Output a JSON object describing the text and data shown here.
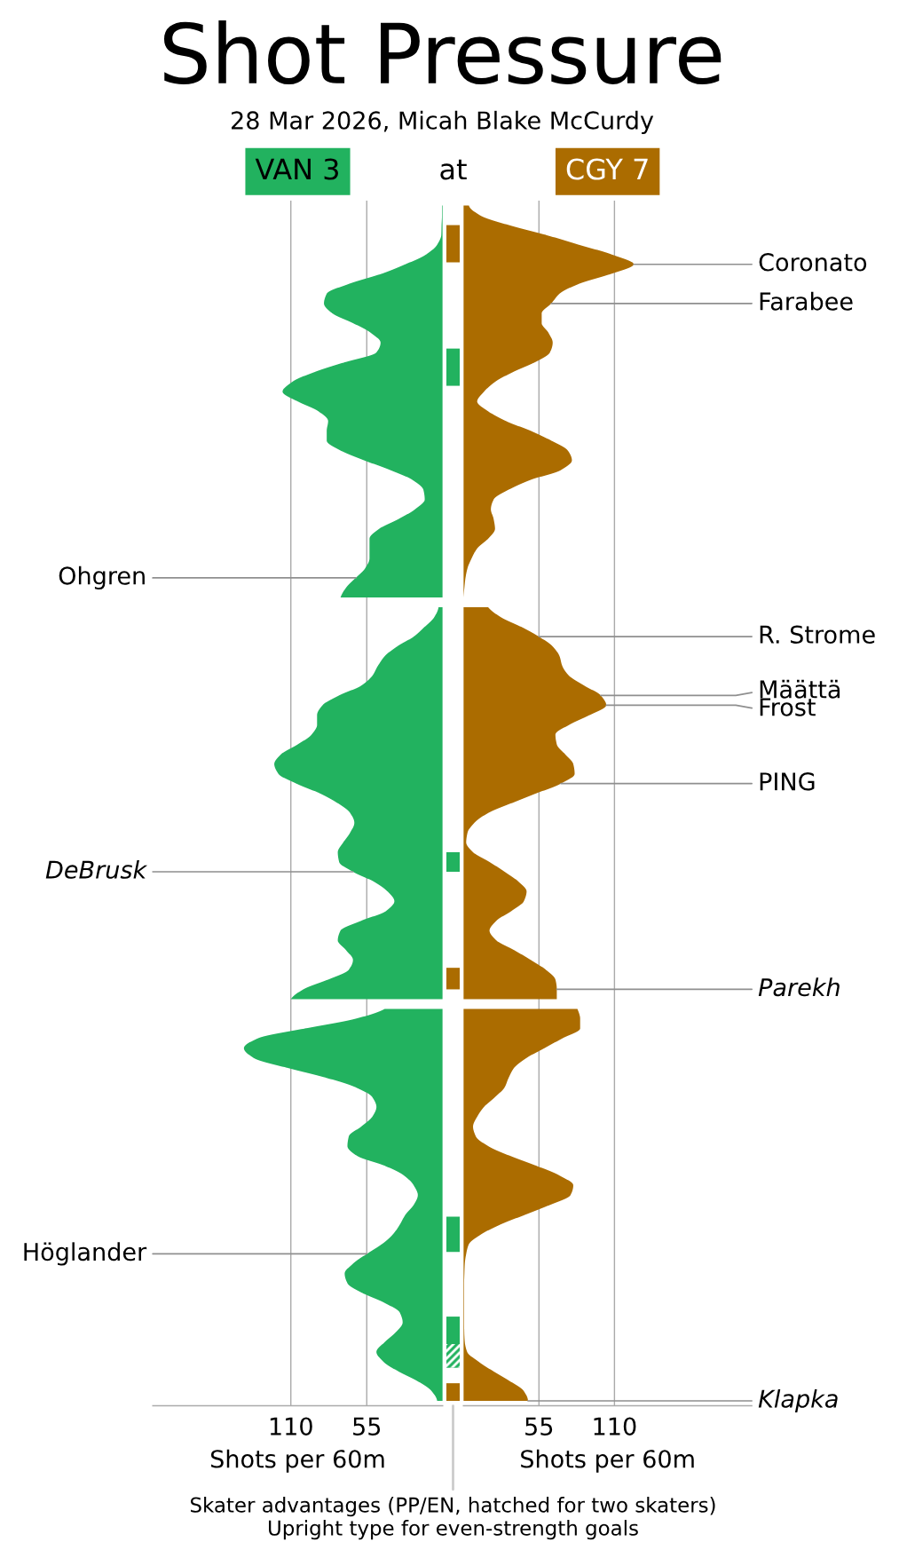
{
  "chart_data": [
    {
      "type": "area",
      "orientation": "horizontal",
      "title": "Shot Pressure",
      "subtitle": "28 Mar 2026, Micah Blake McCurdy",
      "annotations": [
        "at"
      ],
      "legend": "top",
      "xlim": [
        210,
        0
      ],
      "xticks": [
        55,
        110
      ],
      "xlabel": "Shots per 60m",
      "grid": "x",
      "tick_labels": "x",
      "categories": [
        null,
        null,
        null,
        null,
        null,
        null,
        null,
        null,
        null,
        null,
        null,
        null,
        null,
        null,
        null,
        null,
        null,
        null,
        null,
        null,
        null,
        null,
        null,
        null,
        null,
        null,
        null,
        null,
        null,
        null,
        null,
        null,
        null,
        null,
        null,
        null,
        null,
        null,
        null,
        null,
        null,
        null,
        null,
        null,
        null,
        null,
        null,
        null,
        null,
        null,
        null,
        null,
        null,
        null,
        null,
        null,
        null,
        null,
        null,
        null,
        null,
        null,
        null,
        null,
        null,
        null,
        null,
        null,
        null,
        null,
        null,
        null,
        null,
        null,
        null,
        null,
        null,
        null,
        null,
        null,
        null,
        null,
        null,
        null,
        null,
        null,
        null,
        null,
        null,
        null,
        null,
        null,
        null,
        null,
        null,
        null,
        null,
        null,
        null,
        null,
        null,
        null,
        null,
        null,
        null,
        null,
        null,
        null,
        null,
        null,
        null,
        null,
        null,
        null,
        null,
        null,
        null,
        null,
        null,
        null,
        null,
        null,
        null
      ],
      "series": [
        {
          "name": "VAN 3",
          "color": "#22b25f",
          "values": [
            0.5,
            0.5,
            0.8,
            1,
            4,
            12,
            27,
            45,
            68,
            84,
            86,
            80,
            65,
            52,
            45,
            48,
            71,
            93,
            109,
            116,
            105,
            90,
            83,
            84,
            84,
            74,
            57,
            38,
            22,
            14,
            13,
            20,
            32,
            46,
            53,
            53,
            53,
            56,
            63,
            70,
            74,
            null,
            null,
            null,
            null,
            null,
            null,
            null,
            null,
            null,
            null,
            null,
            null,
            null,
            null,
            null,
            null,
            null,
            null,
            null,
            null,
            null,
            null,
            null,
            null,
            null,
            null,
            null,
            null,
            null,
            null,
            null,
            null,
            null,
            null,
            null,
            null,
            null,
            null,
            null,
            null,
            null,
            null,
            null,
            null,
            null,
            null,
            null,
            null,
            null,
            null,
            null,
            null,
            null,
            null,
            null,
            null,
            null,
            null,
            null,
            null,
            null,
            null,
            null,
            null,
            null,
            null,
            null,
            null,
            null,
            null,
            null,
            null,
            null,
            null,
            null,
            null,
            null,
            null,
            null,
            null,
            null,
            null
          ],
          "value_labels": [
            null,
            null,
            null,
            null,
            null,
            null,
            null,
            null,
            null,
            null,
            null,
            null,
            null,
            null,
            null,
            null,
            null,
            null,
            null,
            null,
            null,
            null,
            null,
            null,
            null,
            null,
            null,
            null,
            null,
            null,
            null,
            null,
            null,
            null,
            null,
            null,
            null,
            null,
            "Ohgren",
            null,
            null,
            null,
            null,
            null,
            null,
            null,
            null,
            null,
            null,
            null,
            null,
            null,
            null,
            null,
            null,
            null,
            null,
            null,
            null,
            null,
            null,
            null,
            null,
            null,
            null,
            null,
            null,
            null,
            null,
            null,
            null,
            null,
            null,
            null,
            null,
            null,
            null,
            null,
            null,
            null,
            null,
            null,
            null,
            null,
            null,
            null,
            null,
            null,
            null,
            null,
            null,
            null,
            null,
            null,
            null,
            null,
            null,
            null,
            null,
            null,
            null,
            null,
            null,
            null,
            null,
            null,
            null,
            null,
            null,
            null,
            null,
            null,
            null,
            null,
            null,
            null,
            null,
            null,
            null,
            null,
            null,
            null,
            null
          ]
        },
        {
          "color": "#22b25f",
          "values": [
            null,
            null,
            null,
            null,
            null,
            null,
            null,
            null,
            null,
            null,
            null,
            null,
            null,
            null,
            null,
            null,
            null,
            null,
            null,
            null,
            null,
            null,
            null,
            null,
            null,
            null,
            null,
            null,
            null,
            null,
            null,
            null,
            null,
            null,
            null,
            null,
            null,
            null,
            null,
            null,
            null,
            3,
            6,
            13,
            21,
            33,
            42,
            47,
            51,
            59,
            75,
            87,
            91,
            91,
            95,
            105,
            117,
            122,
            119,
            106,
            89,
            76,
            67,
            64,
            67,
            72,
            76,
            75,
            65,
            50,
            40,
            35,
            41,
            59,
            74,
            76,
            70,
            65,
            68,
            83,
            101,
            110,
            null,
            null,
            null,
            null,
            null,
            null,
            null,
            null,
            null,
            null,
            null,
            null,
            null,
            null,
            null,
            null,
            null,
            null,
            null,
            null,
            null,
            null,
            null,
            null,
            null,
            null,
            null,
            null,
            null,
            null,
            null,
            null,
            null,
            null,
            null,
            null,
            null,
            null,
            null,
            null,
            null
          ],
          "value_labels": [
            null,
            null,
            null,
            null,
            null,
            null,
            null,
            null,
            null,
            null,
            null,
            null,
            null,
            null,
            null,
            null,
            null,
            null,
            null,
            null,
            null,
            null,
            null,
            null,
            null,
            null,
            null,
            null,
            null,
            null,
            null,
            null,
            null,
            null,
            null,
            null,
            null,
            null,
            null,
            null,
            null,
            null,
            null,
            null,
            null,
            null,
            null,
            null,
            null,
            null,
            null,
            null,
            null,
            null,
            null,
            null,
            null,
            null,
            null,
            null,
            null,
            null,
            null,
            null,
            null,
            null,
            null,
            null,
            "DeBrusk",
            null,
            null,
            null,
            null,
            null,
            null,
            null,
            null,
            null,
            null,
            null,
            null,
            null,
            null,
            null,
            null,
            null,
            null,
            null,
            null,
            null,
            null,
            null,
            null,
            null,
            null,
            null,
            null,
            null,
            null,
            null,
            null,
            null,
            null,
            null,
            null,
            null,
            null,
            null,
            null,
            null,
            null,
            null,
            null,
            null,
            null,
            null,
            null,
            null,
            null,
            null,
            null,
            null,
            null
          ]
        },
        {
          "color": "#22b25f",
          "values": [
            null,
            null,
            null,
            null,
            null,
            null,
            null,
            null,
            null,
            null,
            null,
            null,
            null,
            null,
            null,
            null,
            null,
            null,
            null,
            null,
            null,
            null,
            null,
            null,
            null,
            null,
            null,
            null,
            null,
            null,
            null,
            null,
            null,
            null,
            null,
            null,
            null,
            null,
            null,
            null,
            null,
            null,
            null,
            null,
            null,
            null,
            null,
            null,
            null,
            null,
            null,
            null,
            null,
            null,
            null,
            null,
            null,
            null,
            null,
            null,
            null,
            null,
            null,
            null,
            null,
            null,
            null,
            null,
            null,
            null,
            null,
            null,
            null,
            null,
            null,
            null,
            null,
            null,
            null,
            null,
            null,
            null,
            42,
            63,
            100,
            134,
            144,
            137,
            113,
            85,
            63,
            51,
            48,
            51,
            59,
            68,
            69,
            62,
            42,
            28,
            21,
            18,
            21,
            27,
            31,
            36,
            44,
            55,
            65,
            71,
            69,
            58,
            42,
            31,
            29,
            34,
            42,
            48,
            43,
            32,
            18,
            8,
            4
          ],
          "value_labels": [
            null,
            null,
            null,
            null,
            null,
            null,
            null,
            null,
            null,
            null,
            null,
            null,
            null,
            null,
            null,
            null,
            null,
            null,
            null,
            null,
            null,
            null,
            null,
            null,
            null,
            null,
            null,
            null,
            null,
            null,
            null,
            null,
            null,
            null,
            null,
            null,
            null,
            null,
            null,
            null,
            null,
            null,
            null,
            null,
            null,
            null,
            null,
            null,
            null,
            null,
            null,
            null,
            null,
            null,
            null,
            null,
            null,
            null,
            null,
            null,
            null,
            null,
            null,
            null,
            null,
            null,
            null,
            null,
            null,
            null,
            null,
            null,
            null,
            null,
            null,
            null,
            null,
            null,
            null,
            null,
            null,
            null,
            null,
            null,
            null,
            null,
            null,
            null,
            null,
            null,
            null,
            null,
            null,
            null,
            null,
            null,
            null,
            null,
            null,
            null,
            null,
            null,
            null,
            null,
            null,
            null,
            null,
            "Höglander",
            null,
            null,
            null,
            null,
            null,
            null,
            null,
            null,
            null,
            null,
            null,
            null,
            null,
            null,
            null
          ]
        }
      ]
    },
    {
      "type": "area",
      "orientation": "horizontal",
      "legend": "top",
      "annotations": [
        "Skater advantages (PP/EN, hatched for two skaters)",
        "Upright type for even-strength goals"
      ],
      "xlim": [
        0,
        210
      ],
      "xticks": [
        55,
        110
      ],
      "xlabel": "Shots per 60m",
      "grid": "x",
      "tick_labels": "x",
      "categories": [
        null,
        null,
        null,
        null,
        null,
        null,
        null,
        null,
        null,
        null,
        null,
        null,
        null,
        null,
        null,
        null,
        null,
        null,
        null,
        null,
        null,
        null,
        null,
        null,
        null,
        null,
        null,
        null,
        null,
        null,
        null,
        null,
        null,
        null,
        null,
        null,
        null,
        null,
        null,
        null,
        null,
        null,
        null,
        null,
        null,
        null,
        null,
        null,
        null,
        null,
        null,
        null,
        null,
        null,
        null,
        null,
        null,
        null,
        null,
        null,
        null,
        null,
        null,
        null,
        null,
        null,
        null,
        null,
        null,
        null,
        null,
        null,
        null,
        null,
        null,
        null,
        null,
        null,
        null,
        null,
        null,
        null,
        null,
        null,
        null,
        null,
        null,
        null,
        null,
        null,
        null,
        null,
        null,
        null,
        null,
        null,
        null,
        null,
        null,
        null,
        null,
        null,
        null,
        null,
        null,
        null,
        null,
        null,
        null,
        null,
        null,
        null,
        null,
        null,
        null,
        null,
        null,
        null,
        null,
        null,
        null,
        null,
        null
      ],
      "series": [
        {
          "name": "CGY 7",
          "color": "#ab6c00",
          "values": [
            4,
            12,
            33,
            60,
            84,
            108,
            124,
            107,
            84,
            70,
            64,
            57,
            57,
            62,
            65,
            63,
            52,
            36,
            23,
            15,
            10,
            18,
            31,
            49,
            64,
            76,
            79,
            71,
            49,
            33,
            22,
            20,
            22,
            23,
            18,
            10,
            6,
            3,
            1.5,
            0.7,
            0,
            null,
            null,
            null,
            null,
            null,
            null,
            null,
            null,
            null,
            null,
            null,
            null,
            null,
            null,
            null,
            null,
            null,
            null,
            null,
            null,
            null,
            null,
            null,
            null,
            null,
            null,
            null,
            null,
            null,
            null,
            null,
            null,
            null,
            null,
            null,
            null,
            null,
            null,
            null,
            null,
            null,
            null,
            null,
            null,
            null,
            null,
            null,
            null,
            null,
            null,
            null,
            null,
            null,
            null,
            null,
            null,
            null,
            null,
            null,
            null,
            null,
            null,
            null,
            null,
            null,
            null,
            null,
            null,
            null,
            null,
            null,
            null,
            null,
            null,
            null,
            null,
            null,
            null,
            null,
            null,
            null,
            null
          ],
          "value_labels": [
            null,
            null,
            null,
            null,
            null,
            null,
            "Coronato",
            null,
            null,
            null,
            "Farabee",
            null,
            null,
            null,
            null,
            null,
            null,
            null,
            null,
            null,
            null,
            null,
            null,
            null,
            null,
            null,
            null,
            null,
            null,
            null,
            null,
            null,
            null,
            null,
            null,
            null,
            null,
            null,
            null,
            null,
            null,
            null,
            null,
            null,
            null,
            null,
            null,
            null,
            null,
            null,
            null,
            null,
            null,
            null,
            null,
            null,
            null,
            null,
            null,
            null,
            null,
            null,
            null,
            null,
            null,
            null,
            null,
            null,
            null,
            null,
            null,
            null,
            null,
            null,
            null,
            null,
            null,
            null,
            null,
            null,
            null,
            null,
            null,
            null,
            null,
            null,
            null,
            null,
            null,
            null,
            null,
            null,
            null,
            null,
            null,
            null,
            null,
            null,
            null,
            null,
            null,
            null,
            null,
            null,
            null,
            null,
            null,
            null,
            null,
            null,
            null,
            null,
            null,
            null,
            null,
            null,
            null,
            null,
            null,
            null,
            null,
            null,
            null
          ]
        },
        {
          "color": "#ab6c00",
          "values": [
            null,
            null,
            null,
            null,
            null,
            null,
            null,
            null,
            null,
            null,
            null,
            null,
            null,
            null,
            null,
            null,
            null,
            null,
            null,
            null,
            null,
            null,
            null,
            null,
            null,
            null,
            null,
            null,
            null,
            null,
            null,
            null,
            null,
            null,
            null,
            null,
            null,
            null,
            null,
            null,
            null,
            18,
            27,
            42,
            55,
            65,
            70,
            72,
            77,
            88,
            100,
            104,
            92,
            77,
            67,
            68,
            74,
            80,
            81,
            71,
            53,
            35,
            18,
            8,
            3,
            2,
            7,
            19,
            30,
            40,
            46,
            44,
            35,
            24,
            19,
            24,
            37,
            49,
            60,
            67,
            68,
            68,
            null,
            null,
            null,
            null,
            null,
            null,
            null,
            null,
            null,
            null,
            null,
            null,
            null,
            null,
            null,
            null,
            null,
            null,
            null,
            null,
            null,
            null,
            null,
            null,
            null,
            null,
            null,
            null,
            null,
            null,
            null,
            null,
            null,
            null,
            null,
            null,
            null,
            null,
            null,
            null,
            null
          ],
          "value_labels": [
            null,
            null,
            null,
            null,
            null,
            null,
            null,
            null,
            null,
            null,
            null,
            null,
            null,
            null,
            null,
            null,
            null,
            null,
            null,
            null,
            null,
            null,
            null,
            null,
            null,
            null,
            null,
            null,
            null,
            null,
            null,
            null,
            null,
            null,
            null,
            null,
            null,
            null,
            null,
            null,
            null,
            null,
            null,
            null,
            "R. Strome",
            null,
            null,
            null,
            null,
            null,
            "Määttä",
            "Frost",
            null,
            null,
            null,
            null,
            null,
            null,
            null,
            "PING",
            null,
            null,
            null,
            null,
            null,
            null,
            null,
            null,
            null,
            null,
            null,
            null,
            null,
            null,
            null,
            null,
            null,
            null,
            null,
            null,
            "Parekh",
            null,
            null,
            null,
            null,
            null,
            null,
            null,
            null,
            null,
            null,
            null,
            null,
            null,
            null,
            null,
            null,
            null,
            null,
            null,
            null,
            null,
            null,
            null,
            null,
            null,
            null,
            null,
            null,
            null,
            null,
            null,
            null,
            null,
            null,
            null,
            null,
            null,
            null,
            null,
            null,
            null,
            null
          ]
        },
        {
          "color": "#ab6c00",
          "values": [
            null,
            null,
            null,
            null,
            null,
            null,
            null,
            null,
            null,
            null,
            null,
            null,
            null,
            null,
            null,
            null,
            null,
            null,
            null,
            null,
            null,
            null,
            null,
            null,
            null,
            null,
            null,
            null,
            null,
            null,
            null,
            null,
            null,
            null,
            null,
            null,
            null,
            null,
            null,
            null,
            null,
            null,
            null,
            null,
            null,
            null,
            null,
            null,
            null,
            null,
            null,
            null,
            null,
            null,
            null,
            null,
            null,
            null,
            null,
            null,
            null,
            null,
            null,
            null,
            null,
            null,
            null,
            null,
            null,
            null,
            null,
            null,
            null,
            null,
            null,
            null,
            null,
            null,
            null,
            null,
            null,
            null,
            83,
            85,
            85,
            72,
            59,
            46,
            37,
            33,
            30,
            23,
            15,
            10,
            7,
            9,
            18,
            34,
            53,
            70,
            80,
            78,
            63,
            45,
            27,
            13,
            4,
            2,
            1,
            0.7,
            0.5,
            0.5,
            0.5,
            0.5,
            0.5,
            0.6,
            1,
            2.7,
            11,
            22,
            34,
            44,
            47
          ],
          "value_labels": [
            null,
            null,
            null,
            null,
            null,
            null,
            null,
            null,
            null,
            null,
            null,
            null,
            null,
            null,
            null,
            null,
            null,
            null,
            null,
            null,
            null,
            null,
            null,
            null,
            null,
            null,
            null,
            null,
            null,
            null,
            null,
            null,
            null,
            null,
            null,
            null,
            null,
            null,
            null,
            null,
            null,
            null,
            null,
            null,
            null,
            null,
            null,
            null,
            null,
            null,
            null,
            null,
            null,
            null,
            null,
            null,
            null,
            null,
            null,
            null,
            null,
            null,
            null,
            null,
            null,
            null,
            null,
            null,
            null,
            null,
            null,
            null,
            null,
            null,
            null,
            null,
            null,
            null,
            null,
            null,
            null,
            null,
            null,
            null,
            null,
            null,
            null,
            null,
            null,
            null,
            null,
            null,
            null,
            null,
            null,
            null,
            null,
            null,
            null,
            null,
            null,
            null,
            null,
            null,
            null,
            null,
            null,
            null,
            null,
            null,
            null,
            null,
            null,
            null,
            null,
            null,
            null,
            null,
            null,
            null,
            null,
            null,
            "Klapka"
          ]
        }
      ]
    }
  ]
}
